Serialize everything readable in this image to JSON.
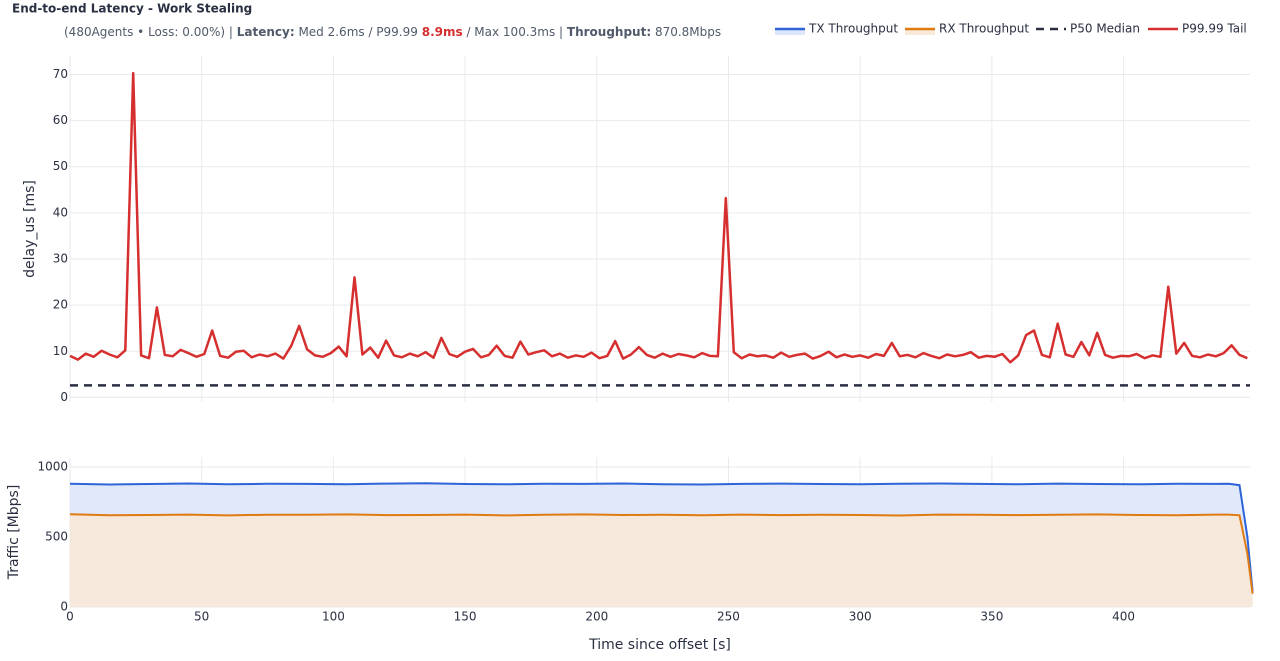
{
  "chart_data": [
    {
      "type": "line",
      "title": "End-to-end Latency - Work Stealing",
      "subtitle": [
        "(480Agents • Loss: 0.00%) | ",
        "Latency:",
        " Med 2.6ms / P99.99 ",
        "8.9ms",
        " / Max 100.3ms | ",
        "Throughput:",
        " 870.8Mbps"
      ],
      "y_label": "delay_us [ms]",
      "xlim": [
        0,
        448
      ],
      "ylim": [
        -1,
        74
      ],
      "yticks": [
        0,
        10,
        20,
        30,
        40,
        50,
        60,
        70
      ],
      "grid": true,
      "series": [
        {
          "name": "P50 Median",
          "color": "#2a3042",
          "dash": true,
          "x": [
            0,
            448
          ],
          "values": [
            2.6,
            2.6
          ]
        },
        {
          "name": "P99.99 Tail",
          "color": "#d62f2f",
          "x": [
            0,
            3,
            6,
            9,
            12,
            15,
            18,
            21,
            24,
            27,
            30,
            33,
            36,
            39,
            42,
            45,
            48,
            51,
            54,
            57,
            60,
            63,
            66,
            69,
            72,
            75,
            78,
            81,
            84,
            87,
            90,
            93,
            96,
            99,
            102,
            105,
            108,
            111,
            114,
            117,
            120,
            123,
            126,
            129,
            132,
            135,
            138,
            141,
            144,
            147,
            150,
            153,
            156,
            159,
            162,
            165,
            168,
            171,
            174,
            177,
            180,
            183,
            186,
            189,
            192,
            195,
            198,
            201,
            204,
            207,
            210,
            213,
            216,
            219,
            222,
            225,
            228,
            231,
            234,
            237,
            240,
            243,
            246,
            249,
            252,
            255,
            258,
            261,
            264,
            267,
            270,
            273,
            276,
            279,
            282,
            285,
            288,
            291,
            294,
            297,
            300,
            303,
            306,
            309,
            312,
            315,
            318,
            321,
            324,
            327,
            330,
            333,
            336,
            339,
            342,
            345,
            348,
            351,
            354,
            357,
            360,
            363,
            366,
            369,
            372,
            375,
            378,
            381,
            384,
            387,
            390,
            393,
            396,
            399,
            402,
            405,
            408,
            411,
            414,
            417,
            420,
            423,
            426,
            429,
            432,
            435,
            438,
            441,
            444,
            447
          ],
          "values": [
            9.0,
            8.2,
            9.5,
            8.8,
            10.1,
            9.3,
            8.7,
            10.2,
            70.3,
            9.1,
            8.5,
            19.5,
            9.2,
            8.9,
            10.3,
            9.6,
            8.8,
            9.4,
            14.5,
            9.0,
            8.6,
            9.9,
            10.1,
            8.7,
            9.3,
            8.9,
            9.5,
            8.4,
            11.2,
            15.5,
            10.4,
            9.1,
            8.8,
            9.6,
            11.0,
            8.9,
            26.0,
            9.3,
            10.8,
            8.6,
            12.3,
            9.1,
            8.7,
            9.5,
            8.9,
            9.8,
            8.6,
            12.9,
            9.4,
            8.8,
            9.9,
            10.5,
            8.7,
            9.2,
            11.2,
            9.0,
            8.6,
            12.1,
            9.3,
            9.8,
            10.2,
            8.9,
            9.5,
            8.6,
            9.1,
            8.8,
            9.7,
            8.5,
            9.0,
            12.2,
            8.4,
            9.3,
            10.9,
            9.2,
            8.6,
            9.5,
            8.8,
            9.4,
            9.1,
            8.7,
            9.6,
            9.0,
            8.9,
            43.2,
            9.8,
            8.5,
            9.3,
            8.9,
            9.1,
            8.6,
            9.7,
            8.8,
            9.2,
            9.5,
            8.4,
            9.0,
            9.9,
            8.7,
            9.3,
            8.8,
            9.1,
            8.6,
            9.4,
            9.0,
            11.8,
            8.9,
            9.2,
            8.7,
            9.6,
            9.0,
            8.5,
            9.3,
            8.9,
            9.2,
            9.8,
            8.6,
            9.0,
            8.8,
            9.4,
            7.6,
            9.1,
            13.5,
            14.5,
            9.2,
            8.7,
            16.0,
            9.3,
            8.8,
            12.0,
            9.1,
            14.0,
            9.2,
            8.6,
            9.0,
            8.9,
            9.4,
            8.5,
            9.1,
            8.8,
            24.0,
            9.5,
            11.8,
            9.0,
            8.7,
            9.3,
            8.9,
            9.6,
            11.3,
            9.2,
            8.5
          ]
        }
      ]
    },
    {
      "type": "area",
      "x_label": "Time since offset [s]",
      "y_label": "Traffic [Mbps]",
      "xlim": [
        0,
        448
      ],
      "xticks": [
        0,
        50,
        100,
        150,
        200,
        250,
        300,
        350,
        400
      ],
      "ylim": [
        0,
        1071
      ],
      "yticks": [
        0,
        500,
        1000
      ],
      "grid": true,
      "x": [
        0,
        15,
        30,
        45,
        60,
        75,
        90,
        105,
        120,
        135,
        150,
        165,
        180,
        195,
        210,
        225,
        240,
        255,
        270,
        285,
        300,
        315,
        330,
        345,
        360,
        375,
        390,
        405,
        420,
        435,
        440,
        444,
        447,
        449
      ],
      "series": [
        {
          "name": "TX Throughput",
          "color": "#2e64d8",
          "fill": "#dde6fa",
          "values": [
            880,
            875,
            878,
            882,
            876,
            880,
            879,
            877,
            881,
            883,
            878,
            876,
            880,
            879,
            882,
            877,
            875,
            879,
            881,
            878,
            876,
            880,
            882,
            879,
            877,
            881,
            878,
            876,
            880,
            879,
            880,
            870,
            500,
            110
          ]
        },
        {
          "name": "RX Throughput",
          "color": "#e07b12",
          "fill": "#f8e9d8",
          "values": [
            662,
            655,
            657,
            660,
            654,
            659,
            658,
            661,
            656,
            657,
            660,
            654,
            659,
            661,
            657,
            658,
            655,
            660,
            656,
            659,
            657,
            653,
            660,
            658,
            656,
            659,
            661,
            657,
            655,
            660,
            660,
            655,
            380,
            95
          ]
        }
      ]
    }
  ]
}
